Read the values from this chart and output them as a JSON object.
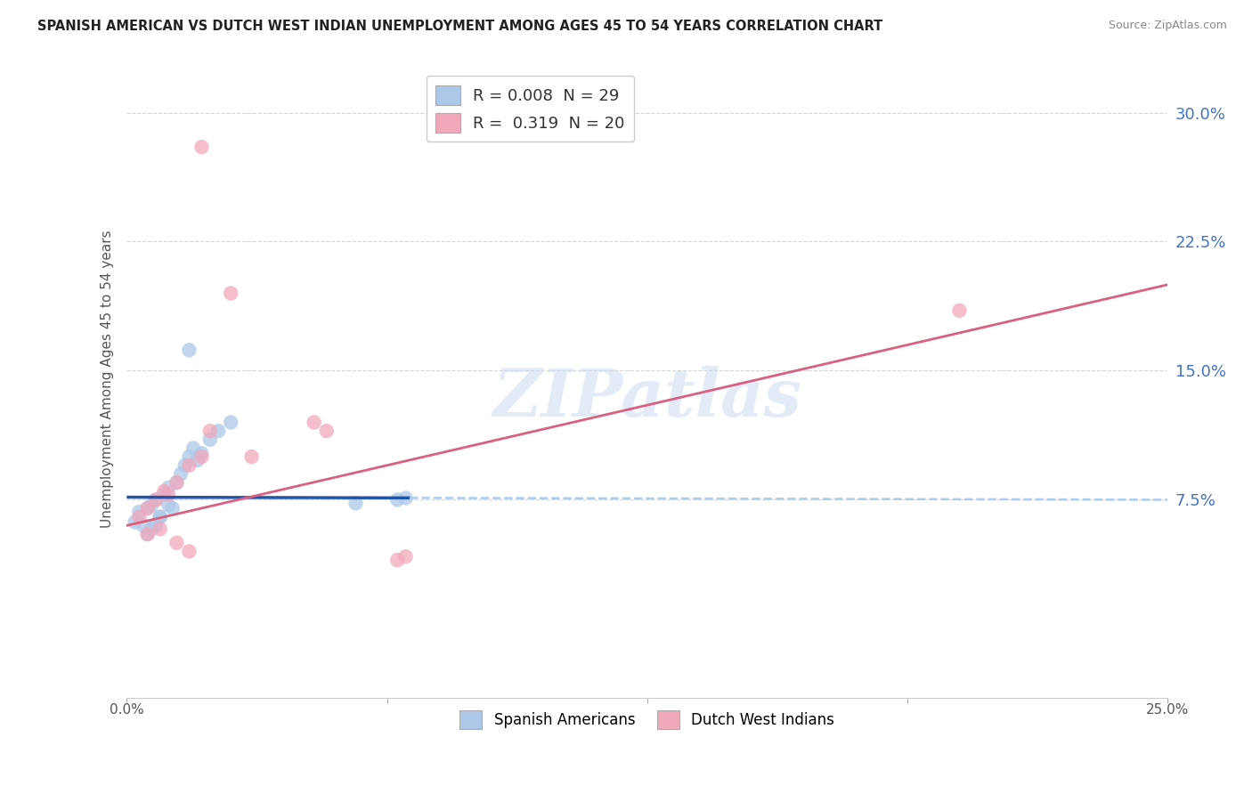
{
  "title": "SPANISH AMERICAN VS DUTCH WEST INDIAN UNEMPLOYMENT AMONG AGES 45 TO 54 YEARS CORRELATION CHART",
  "source": "Source: ZipAtlas.com",
  "ylabel": "Unemployment Among Ages 45 to 54 years",
  "xlim": [
    0.0,
    25.0
  ],
  "ylim": [
    -4.0,
    33.0
  ],
  "yticks": [
    7.5,
    15.0,
    22.5,
    30.0
  ],
  "xticks": [
    0.0,
    6.25,
    12.5,
    18.75,
    25.0
  ],
  "blue_color": "#adc8e8",
  "pink_color": "#f2a8bc",
  "blue_line_color": "#2255aa",
  "blue_dash_color": "#aaccee",
  "pink_line_color": "#d96080",
  "blue_scatter": [
    [
      0.3,
      6.8
    ],
    [
      0.5,
      7.0
    ],
    [
      0.6,
      7.2
    ],
    [
      0.7,
      7.5
    ],
    [
      0.8,
      6.5
    ],
    [
      0.9,
      7.8
    ],
    [
      1.0,
      8.2
    ],
    [
      1.1,
      7.0
    ],
    [
      1.2,
      8.5
    ],
    [
      1.3,
      9.0
    ],
    [
      1.4,
      9.5
    ],
    [
      1.5,
      10.0
    ],
    [
      1.6,
      10.5
    ],
    [
      1.7,
      9.8
    ],
    [
      1.8,
      10.2
    ],
    [
      2.0,
      11.0
    ],
    [
      2.2,
      11.5
    ],
    [
      2.5,
      12.0
    ],
    [
      1.5,
      16.2
    ],
    [
      0.2,
      6.2
    ],
    [
      0.4,
      6.0
    ],
    [
      0.5,
      5.5
    ],
    [
      0.6,
      5.8
    ],
    [
      0.7,
      6.0
    ],
    [
      0.8,
      6.5
    ],
    [
      1.0,
      7.2
    ],
    [
      6.5,
      7.5
    ],
    [
      6.7,
      7.6
    ],
    [
      5.5,
      7.3
    ]
  ],
  "pink_scatter": [
    [
      0.3,
      6.5
    ],
    [
      0.5,
      7.0
    ],
    [
      0.7,
      7.5
    ],
    [
      0.9,
      8.0
    ],
    [
      1.0,
      7.8
    ],
    [
      1.2,
      8.5
    ],
    [
      1.5,
      9.5
    ],
    [
      1.8,
      10.0
    ],
    [
      2.0,
      11.5
    ],
    [
      3.0,
      10.0
    ],
    [
      4.5,
      12.0
    ],
    [
      4.8,
      11.5
    ],
    [
      2.5,
      19.5
    ],
    [
      20.0,
      18.5
    ],
    [
      0.5,
      5.5
    ],
    [
      0.8,
      5.8
    ],
    [
      1.2,
      5.0
    ],
    [
      1.5,
      4.5
    ],
    [
      6.5,
      4.0
    ],
    [
      6.7,
      4.2
    ],
    [
      1.8,
      28.0
    ]
  ],
  "blue_solid_end": 6.8,
  "blue_trend_y_at_0": 7.65,
  "blue_trend_y_at_25": 7.5,
  "pink_trend_y_at_0": 6.0,
  "pink_trend_y_at_25": 20.0,
  "watermark": "ZIPatlas",
  "background_color": "#ffffff",
  "grid_color": "#cccccc"
}
